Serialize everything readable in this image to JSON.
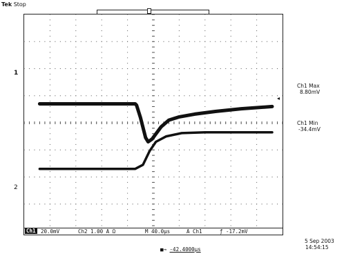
{
  "header": {
    "brand": "Tek",
    "state": "Stop"
  },
  "markers": {
    "trigger_position": "T",
    "ch1_ground": "1",
    "ch2_ground": "2",
    "trigger_level": "◂"
  },
  "measurements": [
    {
      "label": "Ch1 Max",
      "value": "8.80mV"
    },
    {
      "label": "Ch1 Min",
      "value": "-34.4mV"
    }
  ],
  "status": {
    "ch1_tag": "Ch1",
    "ch1_scale": "20.0mV",
    "ch2_scale": "Ch2   1.00 A Ω",
    "timebase": "M 40.0µs",
    "trigger_source": "A  Ch1",
    "trigger_level": "-17.2mV"
  },
  "cursor": {
    "label": "-42.4000µs"
  },
  "footer": {
    "date": "5 Sep 2003",
    "time": "14:54:15"
  },
  "colors": {
    "trace": "#111111",
    "grid": "#555555"
  },
  "chart_data": {
    "type": "line",
    "series": [
      {
        "x": [
          -4.4,
          -0.7,
          -0.65,
          -0.5,
          -0.3,
          -0.2,
          -0.05,
          0.3,
          0.6,
          1.0,
          1.6,
          2.4,
          3.4,
          4.6
        ],
        "y": [
          0.7,
          0.7,
          0.65,
          0.2,
          -0.55,
          -0.7,
          -0.6,
          -0.15,
          0.1,
          0.22,
          0.32,
          0.42,
          0.52,
          0.6
        ]
      },
      {
        "x": [
          -4.4,
          -0.7,
          -0.4,
          -0.15,
          0.1,
          0.5,
          1.1,
          2.0,
          4.6
        ],
        "y": [
          -1.7,
          -1.7,
          -1.55,
          -1.05,
          -0.7,
          -0.5,
          -0.38,
          -0.35,
          -0.35
        ]
      }
    ]
  }
}
